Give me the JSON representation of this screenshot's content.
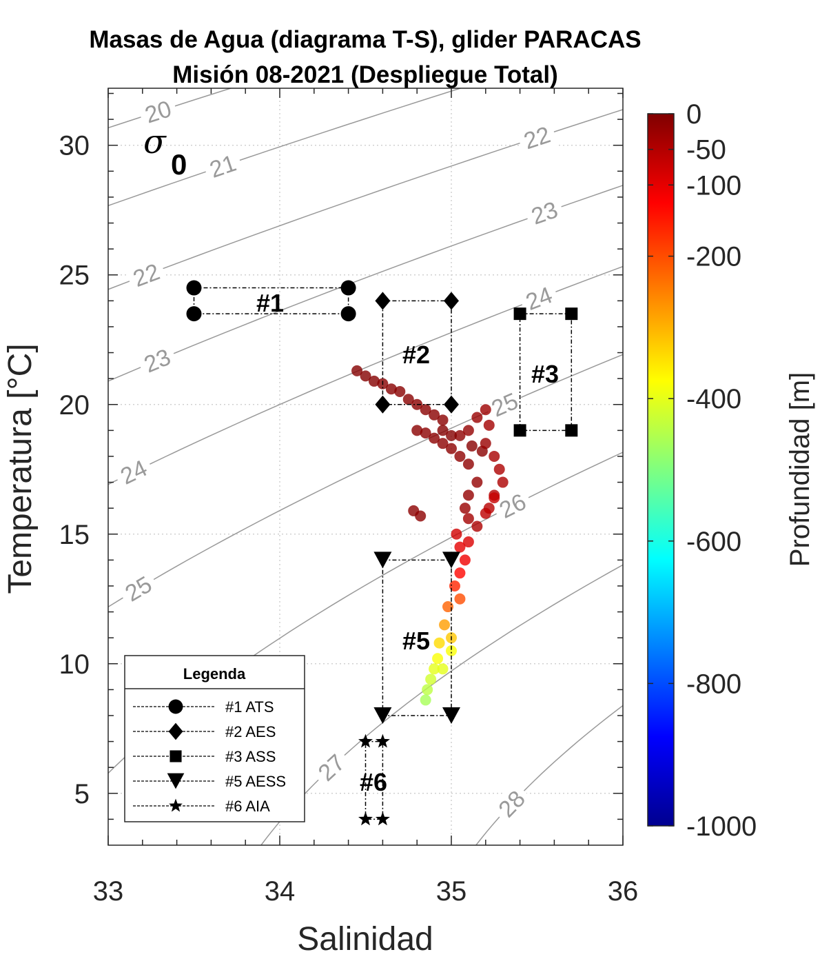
{
  "chart_data": {
    "type": "scatter",
    "title": [
      "Masas de Agua (diagrama T-S), glider PARACAS",
      "Misión 08-2021 (Despliegue Total)"
    ],
    "xlabel": "Salinidad",
    "ylabel": "Temperatura [°C]",
    "xlim": [
      33,
      36
    ],
    "ylim": [
      3,
      32.2
    ],
    "xticks": [
      "33",
      "34",
      "35",
      "36"
    ],
    "yticks": [
      "5",
      "10",
      "15",
      "20",
      "25",
      "30"
    ],
    "grid": true,
    "sigma_symbol": "σ",
    "sigma_subscript": "0",
    "density_contours": {
      "levels": [
        "20",
        "21",
        "22",
        "23",
        "24",
        "25",
        "26",
        "27",
        "28"
      ],
      "color": "#999999"
    },
    "colorbar": {
      "label": "Profundidad [m]",
      "colormap": "jet",
      "range": [
        -1000,
        0
      ],
      "ticks": [
        "0",
        "-50",
        "-100",
        "-200",
        "-400",
        "-600",
        "-800",
        "-1000"
      ]
    },
    "points_columns": [
      "salinity",
      "temperature",
      "depth_m"
    ],
    "points": [
      [
        34.45,
        21.3,
        -5
      ],
      [
        34.5,
        21.1,
        -5
      ],
      [
        34.55,
        20.9,
        -5
      ],
      [
        34.6,
        20.8,
        -8
      ],
      [
        34.65,
        20.6,
        -8
      ],
      [
        34.7,
        20.5,
        -8
      ],
      [
        34.75,
        20.2,
        -8
      ],
      [
        34.8,
        20.0,
        -10
      ],
      [
        34.85,
        19.8,
        -10
      ],
      [
        34.9,
        19.6,
        -10
      ],
      [
        34.95,
        19.4,
        -10
      ],
      [
        34.8,
        19.0,
        -10
      ],
      [
        34.85,
        18.9,
        -12
      ],
      [
        34.9,
        18.7,
        -12
      ],
      [
        34.95,
        18.5,
        -12
      ],
      [
        35.0,
        18.3,
        -12
      ],
      [
        35.05,
        18.0,
        -15
      ],
      [
        35.1,
        17.7,
        -15
      ],
      [
        35.05,
        18.8,
        -15
      ],
      [
        35.0,
        18.8,
        -5
      ],
      [
        34.95,
        19.0,
        -5
      ],
      [
        35.12,
        18.4,
        -8
      ],
      [
        35.18,
        18.2,
        -10
      ],
      [
        35.1,
        19.0,
        -20
      ],
      [
        35.15,
        19.5,
        -25
      ],
      [
        35.2,
        19.8,
        -30
      ],
      [
        35.22,
        19.2,
        -35
      ],
      [
        35.2,
        18.5,
        -25
      ],
      [
        35.25,
        18.0,
        -40
      ],
      [
        35.28,
        17.5,
        -45
      ],
      [
        35.3,
        17.0,
        -45
      ],
      [
        35.25,
        16.5,
        -50
      ],
      [
        35.22,
        16.0,
        -55
      ],
      [
        35.15,
        17.0,
        -20
      ],
      [
        35.1,
        16.5,
        -20
      ],
      [
        35.08,
        16.0,
        -25
      ],
      [
        35.1,
        15.6,
        -35
      ],
      [
        35.15,
        15.3,
        -45
      ],
      [
        35.2,
        15.8,
        -60
      ],
      [
        35.25,
        16.4,
        -70
      ],
      [
        34.78,
        15.9,
        -12
      ],
      [
        34.82,
        15.7,
        -12
      ],
      [
        35.03,
        15.0,
        -80
      ],
      [
        35.1,
        14.7,
        -90
      ],
      [
        35.05,
        14.5,
        -100
      ],
      [
        35.08,
        14.0,
        -110
      ],
      [
        35.05,
        13.5,
        -130
      ],
      [
        35.02,
        13.0,
        -160
      ],
      [
        35.05,
        12.5,
        -200
      ],
      [
        34.98,
        12.2,
        -220
      ],
      [
        34.96,
        11.5,
        -280
      ],
      [
        35.0,
        11.0,
        -320
      ],
      [
        34.93,
        10.8,
        -340
      ],
      [
        35.0,
        10.5,
        -380
      ],
      [
        34.92,
        10.2,
        -380
      ],
      [
        34.95,
        9.8,
        -400
      ],
      [
        34.9,
        9.8,
        -400
      ],
      [
        34.88,
        9.4,
        -420
      ],
      [
        34.86,
        9.0,
        -440
      ],
      [
        34.85,
        8.6,
        -460
      ]
    ],
    "water_masses": [
      {
        "id": "#1",
        "name": "ATS",
        "marker": "circle",
        "salinity": [
          33.5,
          34.4
        ],
        "temperature": [
          23.5,
          24.5
        ]
      },
      {
        "id": "#2",
        "name": "AES",
        "marker": "diamond",
        "salinity": [
          34.6,
          35.0
        ],
        "temperature": [
          20,
          24
        ]
      },
      {
        "id": "#3",
        "name": "ASS",
        "marker": "square",
        "salinity": [
          35.4,
          35.7
        ],
        "temperature": [
          19,
          23.5
        ]
      },
      {
        "id": "#5",
        "name": "AESS",
        "marker": "triangle-down",
        "salinity": [
          34.6,
          35.0
        ],
        "temperature": [
          8,
          14
        ]
      },
      {
        "id": "#6",
        "name": "AIA",
        "marker": "star",
        "salinity": [
          34.5,
          34.6
        ],
        "temperature": [
          4,
          7
        ]
      }
    ],
    "legend": {
      "title": "Legenda",
      "placement": "bottom-left",
      "entries": [
        "#1 ATS",
        "#2 AES",
        "#3 ASS",
        "#5 AESS",
        "#6 AIA"
      ]
    }
  }
}
